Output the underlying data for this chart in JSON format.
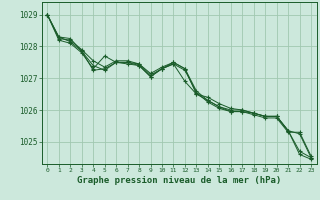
{
  "bg_color": "#cce8dc",
  "grid_color": "#a0c8b0",
  "line_color": "#1a5c2a",
  "title": "Graphe pression niveau de la mer (hPa)",
  "ylim": [
    1024.3,
    1029.4
  ],
  "yticks": [
    1025,
    1026,
    1027,
    1028,
    1029
  ],
  "xlim": [
    -0.5,
    23.5
  ],
  "xticks": [
    0,
    1,
    2,
    3,
    4,
    5,
    6,
    7,
    8,
    9,
    10,
    11,
    12,
    13,
    14,
    15,
    16,
    17,
    18,
    19,
    20,
    21,
    22,
    23
  ],
  "series": [
    [
      1029.0,
      1028.2,
      1028.1,
      1027.8,
      1027.3,
      1027.7,
      1027.5,
      1027.5,
      1027.4,
      1027.05,
      1027.3,
      1027.45,
      1026.9,
      1026.5,
      1026.4,
      1026.2,
      1026.05,
      1026.0,
      1025.9,
      1025.8,
      1025.8,
      1025.35,
      1024.6,
      1024.45
    ],
    [
      1029.0,
      1028.25,
      1028.2,
      1027.9,
      1027.55,
      1027.35,
      1027.55,
      1027.55,
      1027.45,
      1027.15,
      1027.35,
      1027.5,
      1027.3,
      1026.6,
      1026.3,
      1026.1,
      1026.0,
      1026.0,
      1025.9,
      1025.8,
      1025.8,
      1025.35,
      1024.7,
      1024.5
    ],
    [
      1029.0,
      1028.3,
      1028.15,
      1027.85,
      1027.25,
      1027.3,
      1027.5,
      1027.45,
      1027.4,
      1027.05,
      1027.3,
      1027.45,
      1027.25,
      1026.55,
      1026.25,
      1026.05,
      1025.95,
      1025.95,
      1025.85,
      1025.75,
      1025.75,
      1025.3,
      1025.3,
      1024.55
    ],
    [
      1029.0,
      1028.3,
      1028.25,
      1027.85,
      1027.4,
      1027.25,
      1027.5,
      1027.5,
      1027.45,
      1027.1,
      1027.3,
      1027.5,
      1027.3,
      1026.5,
      1026.3,
      1026.1,
      1025.95,
      1025.95,
      1025.9,
      1025.8,
      1025.8,
      1025.35,
      1025.25,
      1024.5
    ]
  ]
}
